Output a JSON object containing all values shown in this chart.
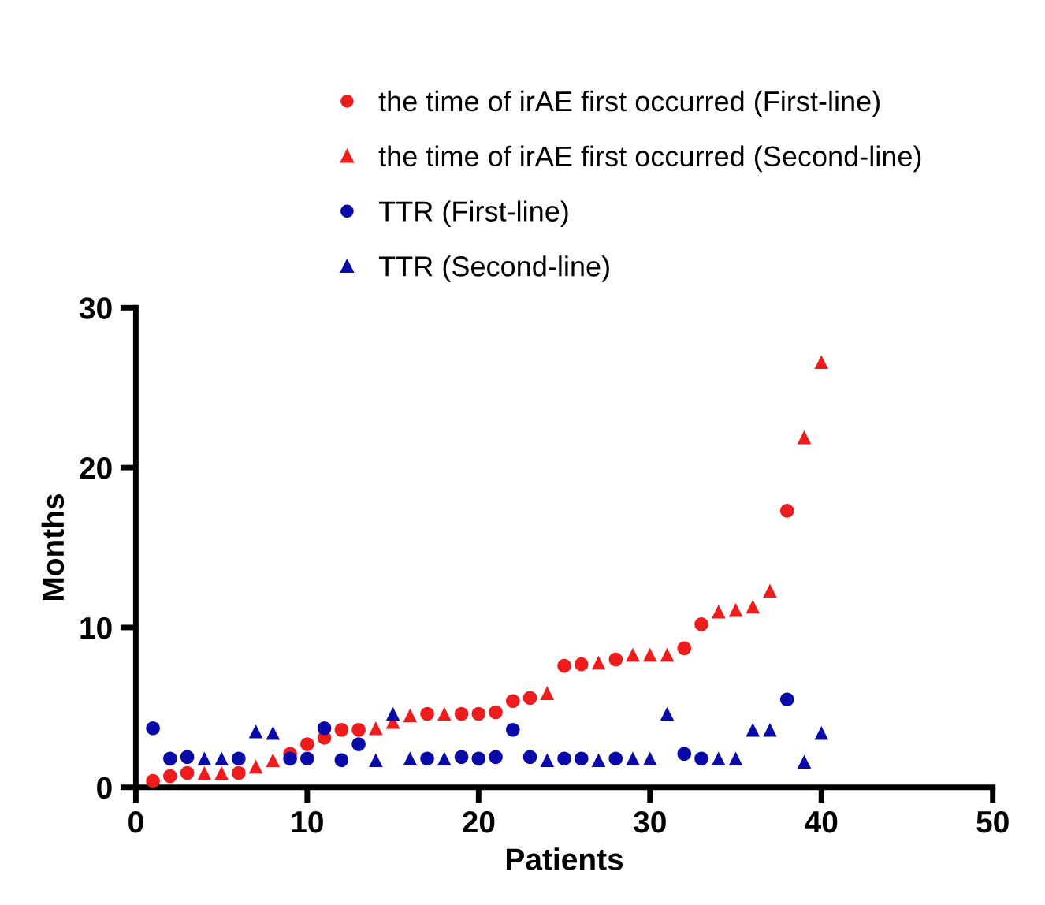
{
  "chart_data": {
    "type": "scatter",
    "xlabel": "Patients",
    "ylabel": "Months",
    "xlim": [
      0,
      50
    ],
    "ylim": [
      0,
      30
    ],
    "xticks": [
      0,
      10,
      20,
      30,
      40,
      50
    ],
    "yticks": [
      0,
      10,
      20,
      30
    ],
    "grid": false,
    "legend": "top",
    "series": [
      {
        "name": "the time of irAE first occurred (First-line)",
        "color": "#ee1c1c",
        "marker": "circle",
        "x": [
          1,
          2,
          3,
          6,
          9,
          10,
          11,
          12,
          13,
          17,
          19,
          20,
          21,
          22,
          23,
          25,
          26,
          28,
          32,
          33,
          38
        ],
        "values": [
          0.4,
          0.7,
          0.9,
          0.9,
          2.1,
          2.7,
          3.1,
          3.6,
          3.6,
          4.6,
          4.6,
          4.6,
          4.7,
          5.4,
          5.6,
          7.6,
          7.7,
          8.0,
          8.7,
          10.2,
          17.3
        ]
      },
      {
        "name": "the time of irAE first occurred (Second-line)",
        "color": "#ee1c1c",
        "marker": "triangle",
        "x": [
          4,
          5,
          7,
          8,
          14,
          15,
          16,
          18,
          24,
          27,
          29,
          30,
          31,
          34,
          35,
          36,
          37,
          39,
          40
        ],
        "values": [
          0.9,
          0.9,
          1.3,
          1.7,
          3.7,
          4.1,
          4.5,
          4.6,
          5.9,
          7.8,
          8.3,
          8.3,
          8.3,
          11.0,
          11.1,
          11.3,
          12.3,
          21.9,
          26.6
        ]
      },
      {
        "name": "TTR (First-line)",
        "color": "#0a0aa8",
        "marker": "circle",
        "x": [
          1,
          2,
          3,
          6,
          9,
          10,
          11,
          12,
          13,
          17,
          19,
          20,
          21,
          22,
          23,
          25,
          26,
          28,
          32,
          33,
          38
        ],
        "values": [
          3.7,
          1.8,
          1.9,
          1.8,
          1.8,
          1.8,
          3.7,
          1.7,
          2.7,
          1.8,
          1.9,
          1.8,
          1.9,
          3.6,
          1.9,
          1.8,
          1.8,
          1.8,
          2.1,
          1.8,
          5.5
        ]
      },
      {
        "name": "TTR (Second-line)",
        "color": "#0a0aa8",
        "marker": "triangle",
        "x": [
          4,
          5,
          7,
          8,
          14,
          15,
          16,
          18,
          24,
          27,
          29,
          30,
          31,
          34,
          35,
          36,
          37,
          39,
          40
        ],
        "values": [
          1.8,
          1.8,
          3.5,
          3.4,
          1.7,
          4.6,
          1.8,
          1.8,
          1.7,
          1.7,
          1.8,
          1.8,
          4.6,
          1.8,
          1.8,
          3.6,
          3.6,
          1.6,
          3.4
        ]
      }
    ]
  }
}
